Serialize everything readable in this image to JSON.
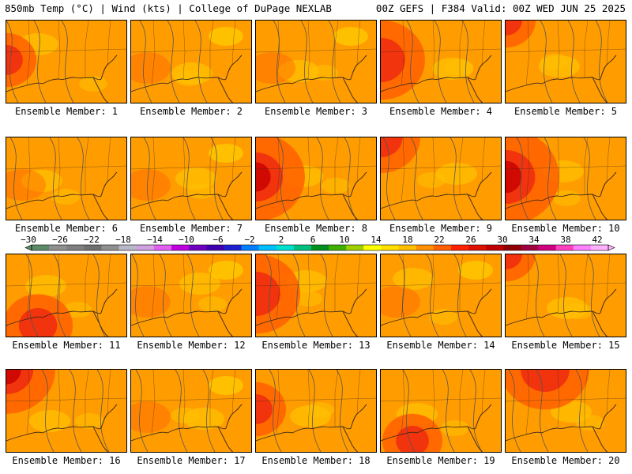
{
  "header": {
    "left": "850mb Temp (°C) | Wind (kts) | College of DuPage NEXLAB",
    "right": "00Z GEFS | F384 Valid: 00Z WED JUN 25 2025"
  },
  "colors": {
    "base": "#ff9c00",
    "warm": "#ff6000",
    "hot": "#ee2a10",
    "extreme": "#c80000",
    "cool": "#ffc000",
    "cooler": "#ffe400",
    "coast": "#3a2a1a",
    "contour": "#555555"
  },
  "colorbar": {
    "labels": [
      "−30",
      "−26",
      "−22",
      "−18",
      "−14",
      "−10",
      "−6",
      "−2",
      "2",
      "6",
      "10",
      "14",
      "18",
      "22",
      "26",
      "30",
      "34",
      "38",
      "42"
    ],
    "colors": [
      "#5d8a68",
      "#909090",
      "#808080",
      "#707070",
      "#909090",
      "#b8b8c8",
      "#d0a0e0",
      "#e060f0",
      "#c000e0",
      "#7000c0",
      "#4000b0",
      "#2020d0",
      "#0080ff",
      "#00c0ff",
      "#00e0d0",
      "#00c080",
      "#009020",
      "#40b000",
      "#a0d000",
      "#ffff00",
      "#ffe000",
      "#ffc000",
      "#ff9000",
      "#ff6000",
      "#ff2000",
      "#e01000",
      "#c00000",
      "#900000",
      "#a00040",
      "#d00080",
      "#ff40c0",
      "#ff80ff",
      "#ffb0ff"
    ]
  },
  "members": [
    {
      "label": "Ensemble Member: 1",
      "warmth": 0.3,
      "hotspot": "w"
    },
    {
      "label": "Ensemble Member: 2",
      "warmth": 0.2,
      "hotspot": "none"
    },
    {
      "label": "Ensemble Member: 3",
      "warmth": 0.1,
      "hotspot": "none"
    },
    {
      "label": "Ensemble Member: 4",
      "warmth": 0.6,
      "hotspot": "w"
    },
    {
      "label": "Ensemble Member: 5",
      "warmth": 0.3,
      "hotspot": "nw"
    },
    {
      "label": "Ensemble Member: 6",
      "warmth": 0.3,
      "hotspot": "none"
    },
    {
      "label": "Ensemble Member: 7",
      "warmth": 0.2,
      "hotspot": "none"
    },
    {
      "label": "Ensemble Member: 8",
      "warmth": 0.7,
      "hotspot": "w"
    },
    {
      "label": "Ensemble Member: 9",
      "warmth": 0.5,
      "hotspot": "nw"
    },
    {
      "label": "Ensemble Member: 10",
      "warmth": 0.8,
      "hotspot": "w"
    },
    {
      "label": "Ensemble Member: 11",
      "warmth": 0.4,
      "hotspot": "sw"
    },
    {
      "label": "Ensemble Member: 12",
      "warmth": 0.2,
      "hotspot": "none"
    },
    {
      "label": "Ensemble Member: 13",
      "warmth": 0.6,
      "hotspot": "w"
    },
    {
      "label": "Ensemble Member: 14",
      "warmth": 0.2,
      "hotspot": "none"
    },
    {
      "label": "Ensemble Member: 15",
      "warmth": 0.3,
      "hotspot": "nw"
    },
    {
      "label": "Ensemble Member: 16",
      "warmth": 0.7,
      "hotspot": "nw"
    },
    {
      "label": "Ensemble Member: 17",
      "warmth": 0.2,
      "hotspot": "none"
    },
    {
      "label": "Ensemble Member: 18",
      "warmth": 0.3,
      "hotspot": "w"
    },
    {
      "label": "Ensemble Member: 19",
      "warmth": 0.3,
      "hotspot": "sw"
    },
    {
      "label": "Ensemble Member: 20",
      "warmth": 0.6,
      "hotspot": "n"
    }
  ]
}
